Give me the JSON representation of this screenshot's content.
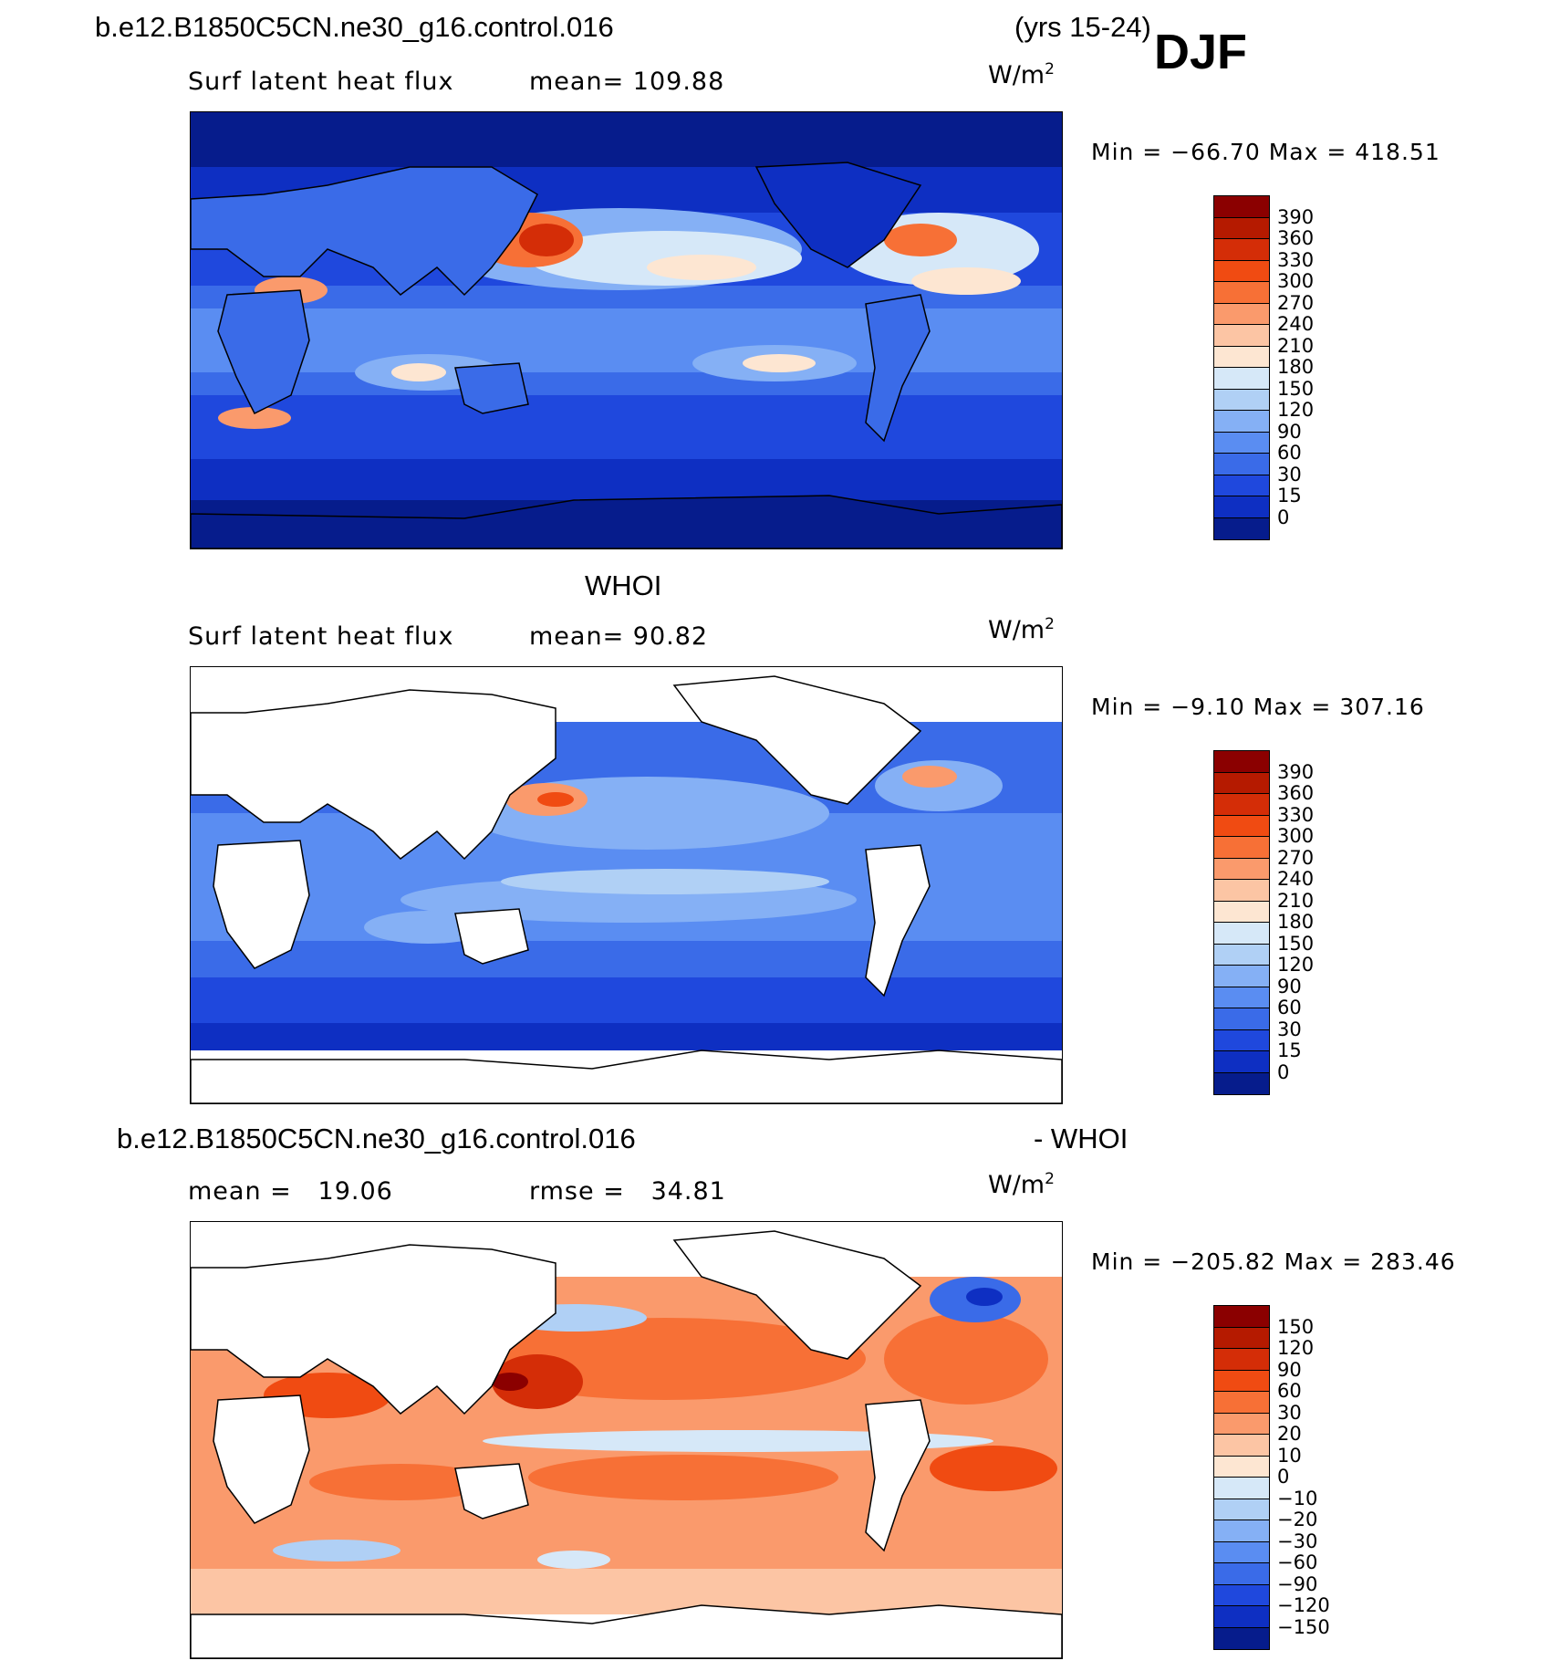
{
  "header": {
    "case_name": "b.e12.B1850C5CN.ne30_g16.control.016",
    "years": "(yrs 15-24)",
    "season": "DJF"
  },
  "panels": [
    {
      "title": "",
      "variable": "Surf latent heat flux",
      "stat_label": "mean=",
      "stat_value": "109.88",
      "units": "W/m",
      "units_exp": "2",
      "min_label": "Min =",
      "min_value": "−66.70",
      "max_label": "Max =",
      "max_value": "418.51",
      "colorbar_ticks": [
        "390",
        "360",
        "330",
        "300",
        "270",
        "240",
        "210",
        "180",
        "150",
        "120",
        "90",
        "60",
        "30",
        "15",
        "0"
      ],
      "colorbar_colors": [
        "#8b0000",
        "#b51a00",
        "#d42d07",
        "#f04b12",
        "#f77036",
        "#fa9a6c",
        "#fcc5a4",
        "#fde6d2",
        "#d6e8f8",
        "#b0d0f5",
        "#85b0f5",
        "#5a8df2",
        "#3a6be8",
        "#1f48dd",
        "#0e2fc2",
        "#061c8c"
      ]
    },
    {
      "title": "WHOI",
      "variable": "Surf latent heat flux",
      "stat_label": "mean=",
      "stat_value": "90.82",
      "units": "W/m",
      "units_exp": "2",
      "min_label": "Min =",
      "min_value": "−9.10",
      "max_label": "Max =",
      "max_value": "307.16",
      "colorbar_ticks": [
        "390",
        "360",
        "330",
        "300",
        "270",
        "240",
        "210",
        "180",
        "150",
        "120",
        "90",
        "60",
        "30",
        "15",
        "0"
      ],
      "colorbar_colors": [
        "#8b0000",
        "#b51a00",
        "#d42d07",
        "#f04b12",
        "#f77036",
        "#fa9a6c",
        "#fcc5a4",
        "#fde6d2",
        "#d6e8f8",
        "#b0d0f5",
        "#85b0f5",
        "#5a8df2",
        "#3a6be8",
        "#1f48dd",
        "#0e2fc2",
        "#061c8c"
      ]
    },
    {
      "title_left": "b.e12.B1850C5CN.ne30_g16.control.016",
      "title_right": "- WHOI",
      "stat_label": "mean =",
      "stat_value": "19.06",
      "stat2_label": "rmse =",
      "stat2_value": "34.81",
      "units": "W/m",
      "units_exp": "2",
      "min_label": "Min =",
      "min_value": "−205.82",
      "max_label": "Max =",
      "max_value": "283.46",
      "colorbar_ticks": [
        "150",
        "120",
        "90",
        "60",
        "30",
        "20",
        "10",
        "0",
        "−10",
        "−20",
        "−30",
        "−60",
        "−90",
        "−120",
        "−150"
      ],
      "colorbar_colors": [
        "#8b0000",
        "#b51a00",
        "#d42d07",
        "#f04b12",
        "#f77036",
        "#fa9a6c",
        "#fcc5a4",
        "#fde6d2",
        "#d6e8f8",
        "#b0d0f5",
        "#85b0f5",
        "#5a8df2",
        "#3a6be8",
        "#1f48dd",
        "#0e2fc2",
        "#061c8c"
      ]
    }
  ]
}
